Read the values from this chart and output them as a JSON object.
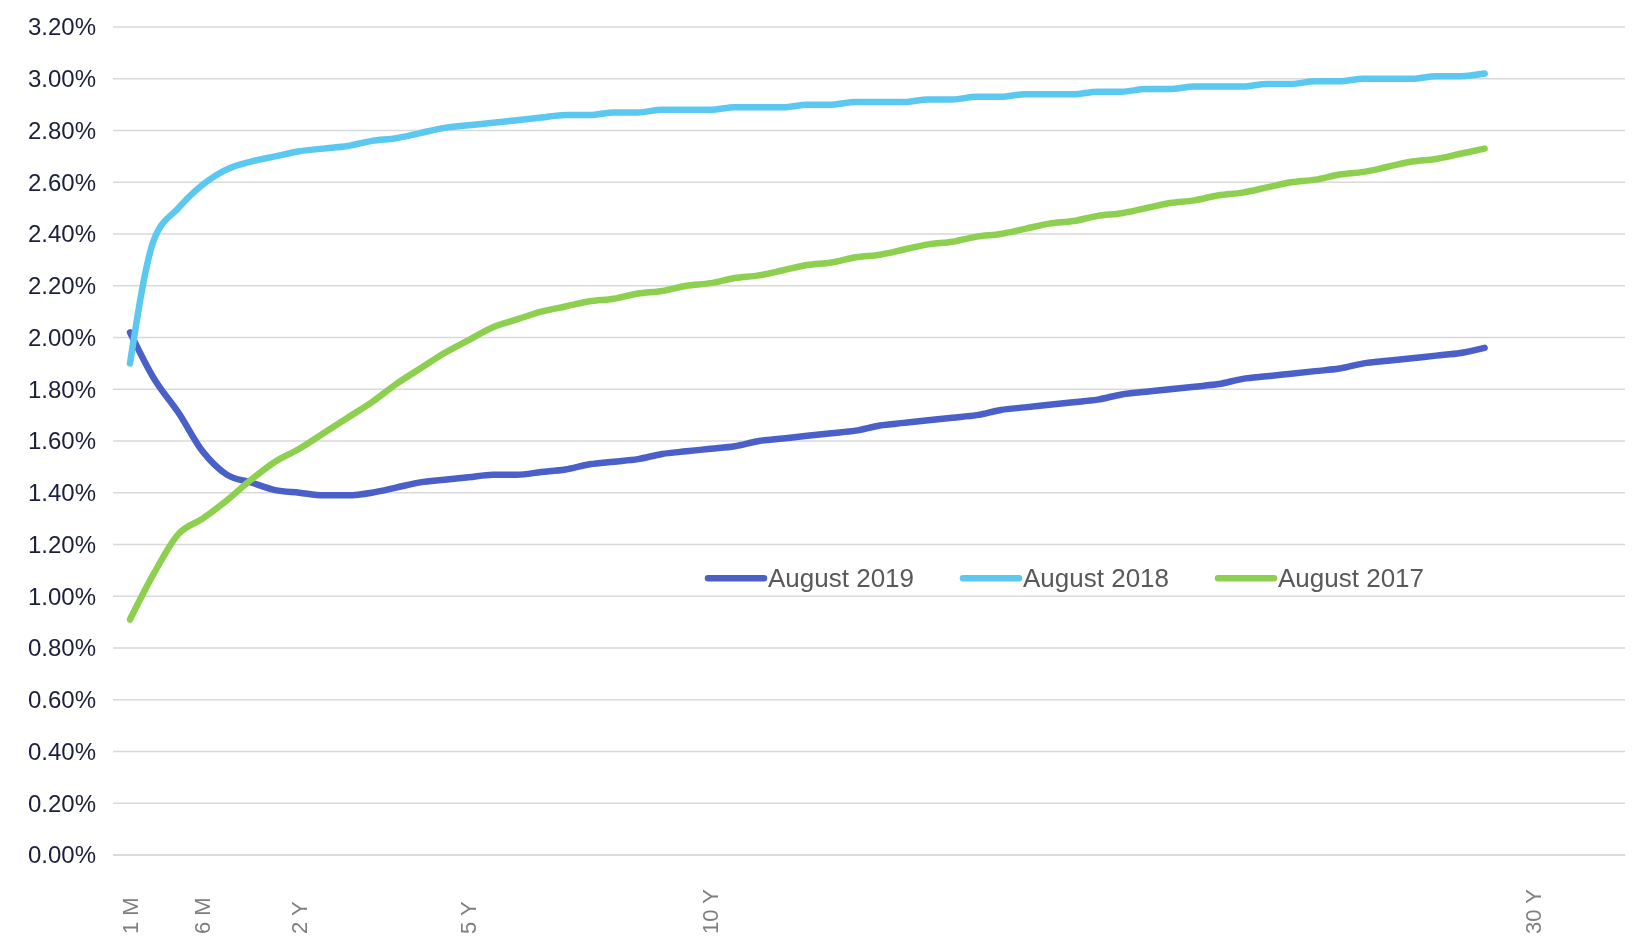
{
  "chart_data": {
    "type": "line",
    "categories": [
      "1 M",
      null,
      null,
      "6 M",
      null,
      null,
      null,
      "2 Y",
      null,
      null,
      null,
      null,
      null,
      null,
      "5 Y",
      null,
      null,
      null,
      null,
      null,
      null,
      null,
      null,
      null,
      "10 Y",
      null,
      null,
      null,
      null,
      null,
      null,
      null,
      null,
      null,
      null,
      null,
      null,
      null,
      null,
      null,
      null,
      null,
      null,
      null,
      null,
      null,
      null,
      null,
      null,
      null,
      null,
      null,
      null,
      null,
      null,
      null,
      null,
      null,
      "30 Y"
    ],
    "ylim": [
      0,
      3.2
    ],
    "yticks": [
      {
        "value": 0,
        "label": "0.00%"
      },
      {
        "value": 0.2,
        "label": "0.20%"
      },
      {
        "value": 0.4,
        "label": "0.40%"
      },
      {
        "value": 0.6,
        "label": "0.60%"
      },
      {
        "value": 0.8,
        "label": "0.80%"
      },
      {
        "value": 1,
        "label": "1.00%"
      },
      {
        "value": 1.2,
        "label": "1.20%"
      },
      {
        "value": 1.4,
        "label": "1.40%"
      },
      {
        "value": 1.6,
        "label": "1.60%"
      },
      {
        "value": 1.8,
        "label": "1.80%"
      },
      {
        "value": 2,
        "label": "2.00%"
      },
      {
        "value": 2.2,
        "label": "2.20%"
      },
      {
        "value": 2.4,
        "label": "2.40%"
      },
      {
        "value": 2.6,
        "label": "2.60%"
      },
      {
        "value": 2.8,
        "label": "2.80%"
      },
      {
        "value": 3,
        "label": "3.00%"
      },
      {
        "value": 3.2,
        "label": "3.20%"
      }
    ],
    "grid": "y",
    "legend": "bottom right",
    "line_style": "solid",
    "marker": "none",
    "series": [
      {
        "name": "August 2019",
        "color": "#4a5fc8",
        "values": [
          2.02,
          1.84,
          1.71,
          1.56,
          1.47,
          1.44,
          1.41,
          1.4,
          1.39,
          1.39,
          1.4,
          1.42,
          1.44,
          1.45,
          1.46,
          1.47,
          1.47,
          1.48,
          1.49,
          1.51,
          1.52,
          1.53,
          1.55,
          1.56,
          1.57,
          1.58,
          1.6,
          1.61,
          1.62,
          1.63,
          1.64,
          1.66,
          1.67,
          1.68,
          1.69,
          1.7,
          1.72,
          1.73,
          1.74,
          1.75,
          1.76,
          1.78,
          1.79,
          1.8,
          1.81,
          1.82,
          1.84,
          1.85,
          1.86,
          1.87,
          1.88,
          1.9,
          1.91,
          1.92,
          1.93,
          1.94,
          1.96,
          null,
          null
        ]
      },
      {
        "name": "August 2018",
        "color": "#5bc8f0",
        "values": [
          1.9,
          2.38,
          2.5,
          2.59,
          2.65,
          2.68,
          2.7,
          2.72,
          2.73,
          2.74,
          2.76,
          2.77,
          2.79,
          2.81,
          2.82,
          2.83,
          2.84,
          2.85,
          2.86,
          2.86,
          2.87,
          2.87,
          2.88,
          2.88,
          2.88,
          2.89,
          2.89,
          2.89,
          2.9,
          2.9,
          2.91,
          2.91,
          2.91,
          2.92,
          2.92,
          2.93,
          2.93,
          2.94,
          2.94,
          2.94,
          2.95,
          2.95,
          2.96,
          2.96,
          2.97,
          2.97,
          2.97,
          2.98,
          2.98,
          2.99,
          2.99,
          3,
          3,
          3,
          3.01,
          3.01,
          3.02,
          null,
          null
        ]
      },
      {
        "name": "August 2017",
        "color": "#8dd04f",
        "values": [
          0.91,
          1.09,
          1.24,
          1.3,
          1.37,
          1.45,
          1.52,
          1.57,
          1.63,
          1.69,
          1.75,
          1.82,
          1.88,
          1.94,
          1.99,
          2.04,
          2.07,
          2.1,
          2.12,
          2.14,
          2.15,
          2.17,
          2.18,
          2.2,
          2.21,
          2.23,
          2.24,
          2.26,
          2.28,
          2.29,
          2.31,
          2.32,
          2.34,
          2.36,
          2.37,
          2.39,
          2.4,
          2.42,
          2.44,
          2.45,
          2.47,
          2.48,
          2.5,
          2.52,
          2.53,
          2.55,
          2.56,
          2.58,
          2.6,
          2.61,
          2.63,
          2.64,
          2.66,
          2.68,
          2.69,
          2.71,
          2.73,
          null,
          null
        ]
      }
    ]
  }
}
